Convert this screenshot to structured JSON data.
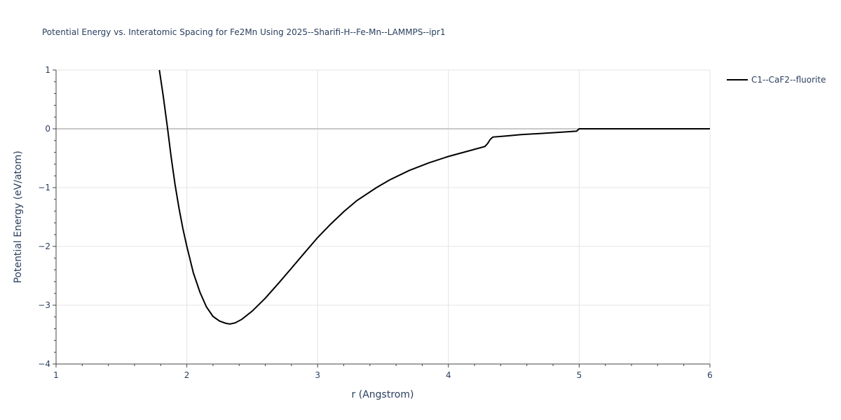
{
  "chart_data": {
    "type": "line",
    "title": "Potential Energy vs. Interatomic Spacing for Fe2Mn Using 2025--Sharifi-H--Fe-Mn--LAMMPS--ipr1",
    "xlabel": "r (Angstrom)",
    "ylabel": "Potential Energy (eV/atom)",
    "xlim": [
      1,
      6
    ],
    "ylim": [
      -4,
      1
    ],
    "xticks": [
      1,
      2,
      3,
      4,
      5,
      6
    ],
    "xtick_labels": [
      "1",
      "2",
      "3",
      "4",
      "5",
      "6"
    ],
    "yticks": [
      1,
      0,
      -1,
      -2,
      -3,
      -4
    ],
    "ytick_labels": [
      "1",
      "0",
      "−1",
      "−2",
      "−3",
      "−4"
    ],
    "grid": true,
    "legend_position": "top-right",
    "series": [
      {
        "name": "C1--CaF2--fluorite",
        "color": "#000000",
        "x": [
          1.79,
          1.82,
          1.85,
          1.88,
          1.91,
          1.94,
          1.97,
          2.0,
          2.05,
          2.1,
          2.15,
          2.2,
          2.25,
          2.3,
          2.33,
          2.37,
          2.42,
          2.5,
          2.6,
          2.7,
          2.8,
          2.9,
          3.0,
          3.1,
          3.2,
          3.3,
          3.45,
          3.55,
          3.7,
          3.85,
          4.0,
          4.15,
          4.28,
          4.3,
          4.32,
          4.34,
          4.45,
          4.55,
          4.7,
          4.85,
          4.98,
          5.0,
          5.2,
          5.5,
          5.8,
          6.0
        ],
        "y": [
          1.0,
          0.55,
          0.05,
          -0.48,
          -0.95,
          -1.35,
          -1.7,
          -2.0,
          -2.45,
          -2.78,
          -3.03,
          -3.19,
          -3.27,
          -3.31,
          -3.32,
          -3.3,
          -3.24,
          -3.1,
          -2.88,
          -2.63,
          -2.37,
          -2.11,
          -1.85,
          -1.62,
          -1.41,
          -1.22,
          -1.0,
          -0.87,
          -0.71,
          -0.58,
          -0.47,
          -0.38,
          -0.3,
          -0.25,
          -0.18,
          -0.14,
          -0.12,
          -0.1,
          -0.08,
          -0.06,
          -0.04,
          0.0,
          0.0,
          0.0,
          0.0,
          0.0
        ]
      }
    ]
  }
}
